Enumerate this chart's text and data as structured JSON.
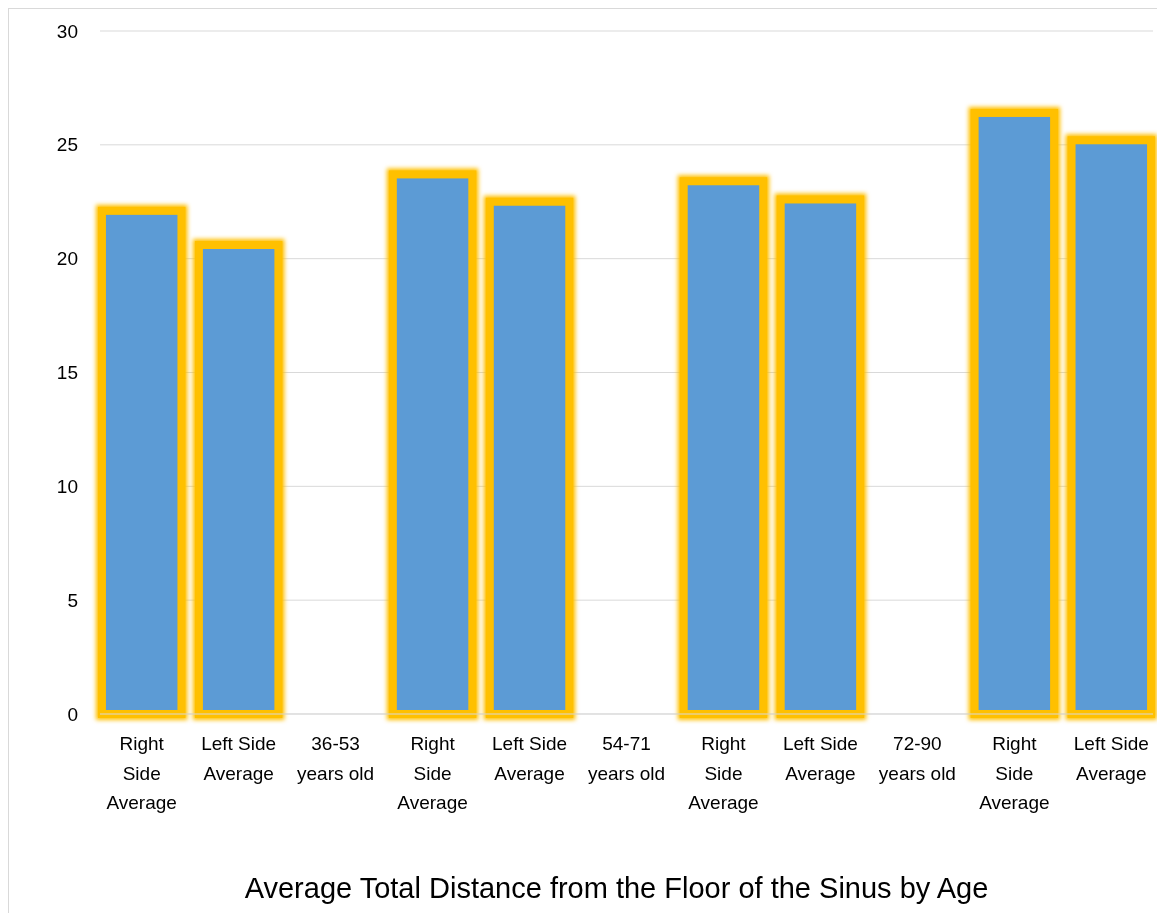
{
  "chart_data": {
    "type": "bar",
    "title": "Average Total Distance from the Floor of the Sinus by Age",
    "categories": [
      "Right Side Average",
      "Left Side Average",
      "36-53 years old",
      "Right Side Average",
      "Left Side Average",
      "54-71 years old",
      "Right Side Average",
      "Left Side Average",
      "72-90 years old",
      "Right Side Average",
      "Left Side Average"
    ],
    "values": [
      22.1,
      20.6,
      null,
      23.7,
      22.5,
      null,
      23.4,
      22.6,
      null,
      26.4,
      25.2
    ],
    "color": "#5b9bd5",
    "ylim": [
      0,
      30
    ],
    "yticks": [
      0,
      5,
      10,
      15,
      20,
      25,
      30
    ],
    "grid": "y"
  }
}
